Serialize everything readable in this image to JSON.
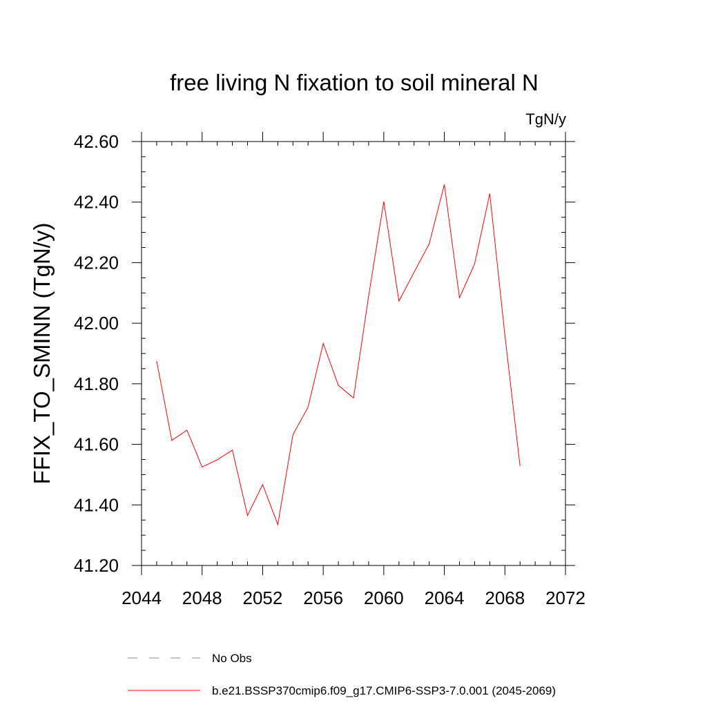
{
  "chart_data": {
    "type": "line",
    "title": "free living N fixation to soil mineral N",
    "units_label": "TgN/y",
    "xlabel": "",
    "ylabel": "FFIX_TO_SMINN  (TgN/y)",
    "xlim": [
      2044,
      2072
    ],
    "ylim": [
      41.2,
      42.6
    ],
    "x_ticks": [
      2044,
      2048,
      2052,
      2056,
      2060,
      2064,
      2068,
      2072
    ],
    "x_tick_labels": [
      "2044",
      "2048",
      "2052",
      "2056",
      "2060",
      "2064",
      "2068",
      "2072"
    ],
    "y_ticks": [
      41.2,
      41.4,
      41.6,
      41.8,
      42.0,
      42.2,
      42.4,
      42.6
    ],
    "y_tick_labels": [
      "41.20",
      "41.40",
      "41.60",
      "41.80",
      "42.00",
      "42.20",
      "42.40",
      "42.60"
    ],
    "grid": false,
    "legend_position": "bottom",
    "series": [
      {
        "name": "b.e21.BSSP370cmip6.f09_g17.CMIP6-SSP3-7.0.001 (2045-2069)",
        "color": "#ff0000",
        "style": "solid",
        "x": [
          2045,
          2046,
          2047,
          2048,
          2049,
          2050,
          2051,
          2052,
          2053,
          2054,
          2055,
          2056,
          2057,
          2058,
          2059,
          2060,
          2061,
          2062,
          2063,
          2064,
          2065,
          2066,
          2067,
          2068,
          2069
        ],
        "y": [
          41.875,
          41.613,
          41.647,
          41.525,
          41.549,
          41.581,
          41.365,
          41.467,
          41.335,
          41.632,
          41.723,
          41.933,
          41.795,
          41.753,
          42.09,
          42.402,
          42.073,
          42.168,
          42.262,
          42.458,
          42.084,
          42.196,
          42.428,
          41.96,
          41.528
        ]
      },
      {
        "name": "No Obs",
        "color": "#8080c0",
        "style": "dashed",
        "x": [],
        "y": []
      }
    ]
  }
}
